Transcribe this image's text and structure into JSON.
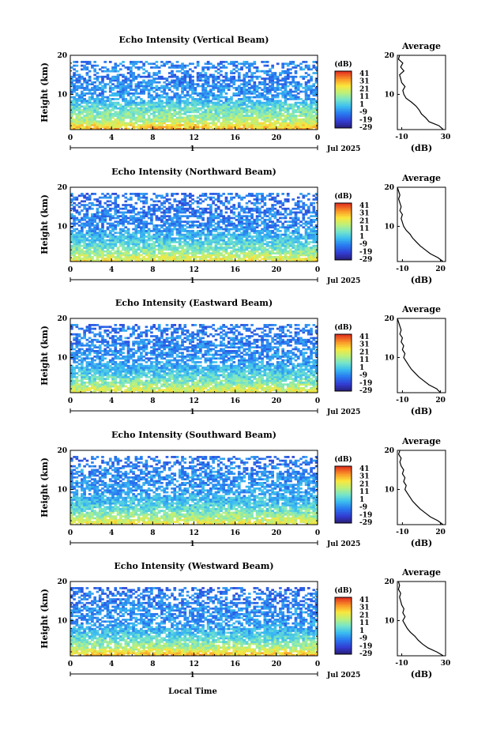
{
  "figure": {
    "xlabel": "Local Time",
    "x_ticks": [
      "0",
      "4",
      "8",
      "12",
      "16",
      "20",
      "0"
    ],
    "day_label": "1",
    "date_label": "Jul 2025",
    "colorbar_unit": "(dB)",
    "colorbar_ticks": [
      "41",
      "31",
      "21",
      "11",
      "1",
      "-9",
      "-19",
      "-29"
    ],
    "avg_title": "Average",
    "avg_unit": "(dB)",
    "ylabel": "Height (km)",
    "y_ticks": [
      "20",
      "10"
    ]
  },
  "chart_data": [
    {
      "type": "heatmap",
      "title": "Echo Intensity (Vertical Beam)",
      "xlabel": "",
      "ylabel": "Height (km)",
      "xlim": [
        0,
        24
      ],
      "ylim": [
        1,
        20
      ],
      "zlim": [
        -29,
        41
      ],
      "z_unit": "dB",
      "avg_profile": {
        "x_ticks": [
          "-10",
          "30"
        ],
        "xlim": [
          -14,
          30
        ],
        "y_ticks": [
          "20",
          "10"
        ],
        "height": [
          1,
          2,
          3,
          4,
          5,
          6,
          7,
          8,
          9,
          10,
          11,
          12,
          13,
          14,
          15,
          16,
          17,
          18,
          19,
          20
        ],
        "db": [
          28,
          24,
          15,
          12,
          8,
          6,
          3,
          -1,
          -6,
          -8,
          -9,
          -7,
          -10,
          -11,
          -12,
          -8,
          -11,
          -9,
          -13,
          -12
        ]
      }
    },
    {
      "type": "heatmap",
      "title": "Echo Intensity (Northward Beam)",
      "xlabel": "",
      "ylabel": "Height (km)",
      "xlim": [
        0,
        24
      ],
      "ylim": [
        1,
        20
      ],
      "zlim": [
        -29,
        41
      ],
      "z_unit": "dB",
      "avg_profile": {
        "x_ticks": [
          "-10",
          "20"
        ],
        "xlim": [
          -14,
          24
        ],
        "y_ticks": [
          "20",
          "10"
        ],
        "height": [
          1,
          2,
          3,
          4,
          5,
          6,
          7,
          8,
          9,
          10,
          11,
          12,
          13,
          14,
          15,
          16,
          17,
          18,
          19,
          20
        ],
        "db": [
          22,
          18,
          12,
          8,
          4,
          1,
          -2,
          -4,
          -7,
          -9,
          -10,
          -11,
          -10,
          -12,
          -11,
          -12,
          -13,
          -12,
          -13,
          -14
        ]
      }
    },
    {
      "type": "heatmap",
      "title": "Echo Intensity (Eastward Beam)",
      "xlabel": "",
      "ylabel": "Height (km)",
      "xlim": [
        0,
        24
      ],
      "ylim": [
        1,
        20
      ],
      "zlim": [
        -29,
        41
      ],
      "z_unit": "dB",
      "avg_profile": {
        "x_ticks": [
          "-10",
          "20"
        ],
        "xlim": [
          -14,
          24
        ],
        "y_ticks": [
          "20",
          "10"
        ],
        "height": [
          1,
          2,
          3,
          4,
          5,
          6,
          7,
          8,
          9,
          10,
          11,
          12,
          13,
          14,
          15,
          16,
          17,
          18,
          19,
          20
        ],
        "db": [
          20,
          17,
          11,
          7,
          3,
          0,
          -3,
          -5,
          -7,
          -9,
          -8,
          -10,
          -9,
          -11,
          -10,
          -12,
          -11,
          -12,
          -13,
          -14
        ]
      }
    },
    {
      "type": "heatmap",
      "title": "Echo Intensity (Southward Beam)",
      "xlabel": "",
      "ylabel": "Height (km)",
      "xlim": [
        0,
        24
      ],
      "ylim": [
        1,
        20
      ],
      "zlim": [
        -29,
        41
      ],
      "z_unit": "dB",
      "avg_profile": {
        "x_ticks": [
          "-10",
          "20"
        ],
        "xlim": [
          -14,
          24
        ],
        "y_ticks": [
          "20",
          "10"
        ],
        "height": [
          1,
          2,
          3,
          4,
          5,
          6,
          7,
          8,
          9,
          10,
          11,
          12,
          13,
          14,
          15,
          16,
          17,
          18,
          19,
          20
        ],
        "db": [
          22,
          18,
          12,
          8,
          4,
          1,
          -2,
          -4,
          -6,
          -8,
          -7,
          -9,
          -8,
          -10,
          -9,
          -11,
          -12,
          -11,
          -13,
          -12
        ]
      }
    },
    {
      "type": "heatmap",
      "title": "Echo Intensity (Westward Beam)",
      "xlabel": "Local Time",
      "ylabel": "Height (km)",
      "xlim": [
        0,
        24
      ],
      "ylim": [
        1,
        20
      ],
      "zlim": [
        -29,
        41
      ],
      "z_unit": "dB",
      "avg_profile": {
        "x_ticks": [
          "-10",
          "30"
        ],
        "xlim": [
          -14,
          30
        ],
        "y_ticks": [
          "20",
          "10"
        ],
        "height": [
          1,
          2,
          3,
          4,
          5,
          6,
          7,
          8,
          9,
          10,
          11,
          12,
          13,
          14,
          15,
          16,
          17,
          18,
          19,
          20
        ],
        "db": [
          28,
          22,
          14,
          9,
          5,
          2,
          -2,
          -5,
          -7,
          -9,
          -7,
          -9,
          -8,
          -10,
          -11,
          -12,
          -11,
          -13,
          -12,
          -13
        ]
      }
    }
  ]
}
